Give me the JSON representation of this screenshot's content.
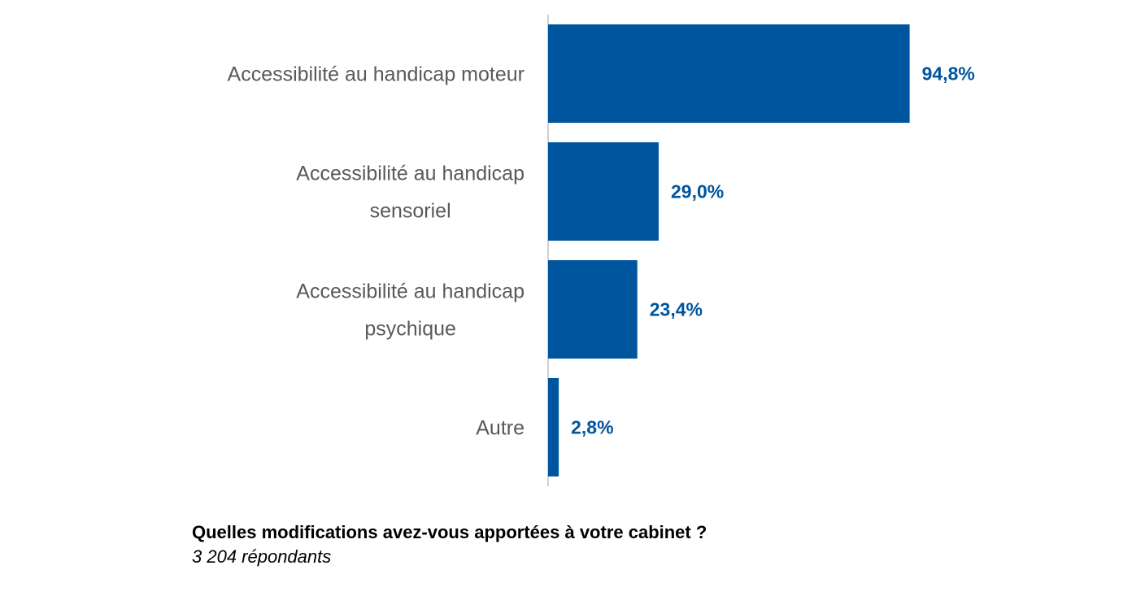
{
  "chart_data": {
    "type": "bar",
    "orientation": "horizontal",
    "categories": [
      [
        "Accessibilité au handicap moteur"
      ],
      [
        "Accessibilité au handicap",
        "sensoriel"
      ],
      [
        "Accessibilité au handicap",
        "psychique"
      ],
      [
        "Autre"
      ]
    ],
    "values": [
      94.8,
      29.0,
      23.4,
      2.8
    ],
    "value_labels": [
      "94,8%",
      "29,0%",
      "23,4%",
      "2,8%"
    ],
    "xlim": [
      0,
      100
    ],
    "unit": "%",
    "grid": false,
    "legend": "none",
    "bar_color": "#00559F",
    "label_color": "#00559F",
    "title": "Quelles modifications avez-vous apportées à votre cabinet ?",
    "subtitle": "3 204 répondants"
  }
}
